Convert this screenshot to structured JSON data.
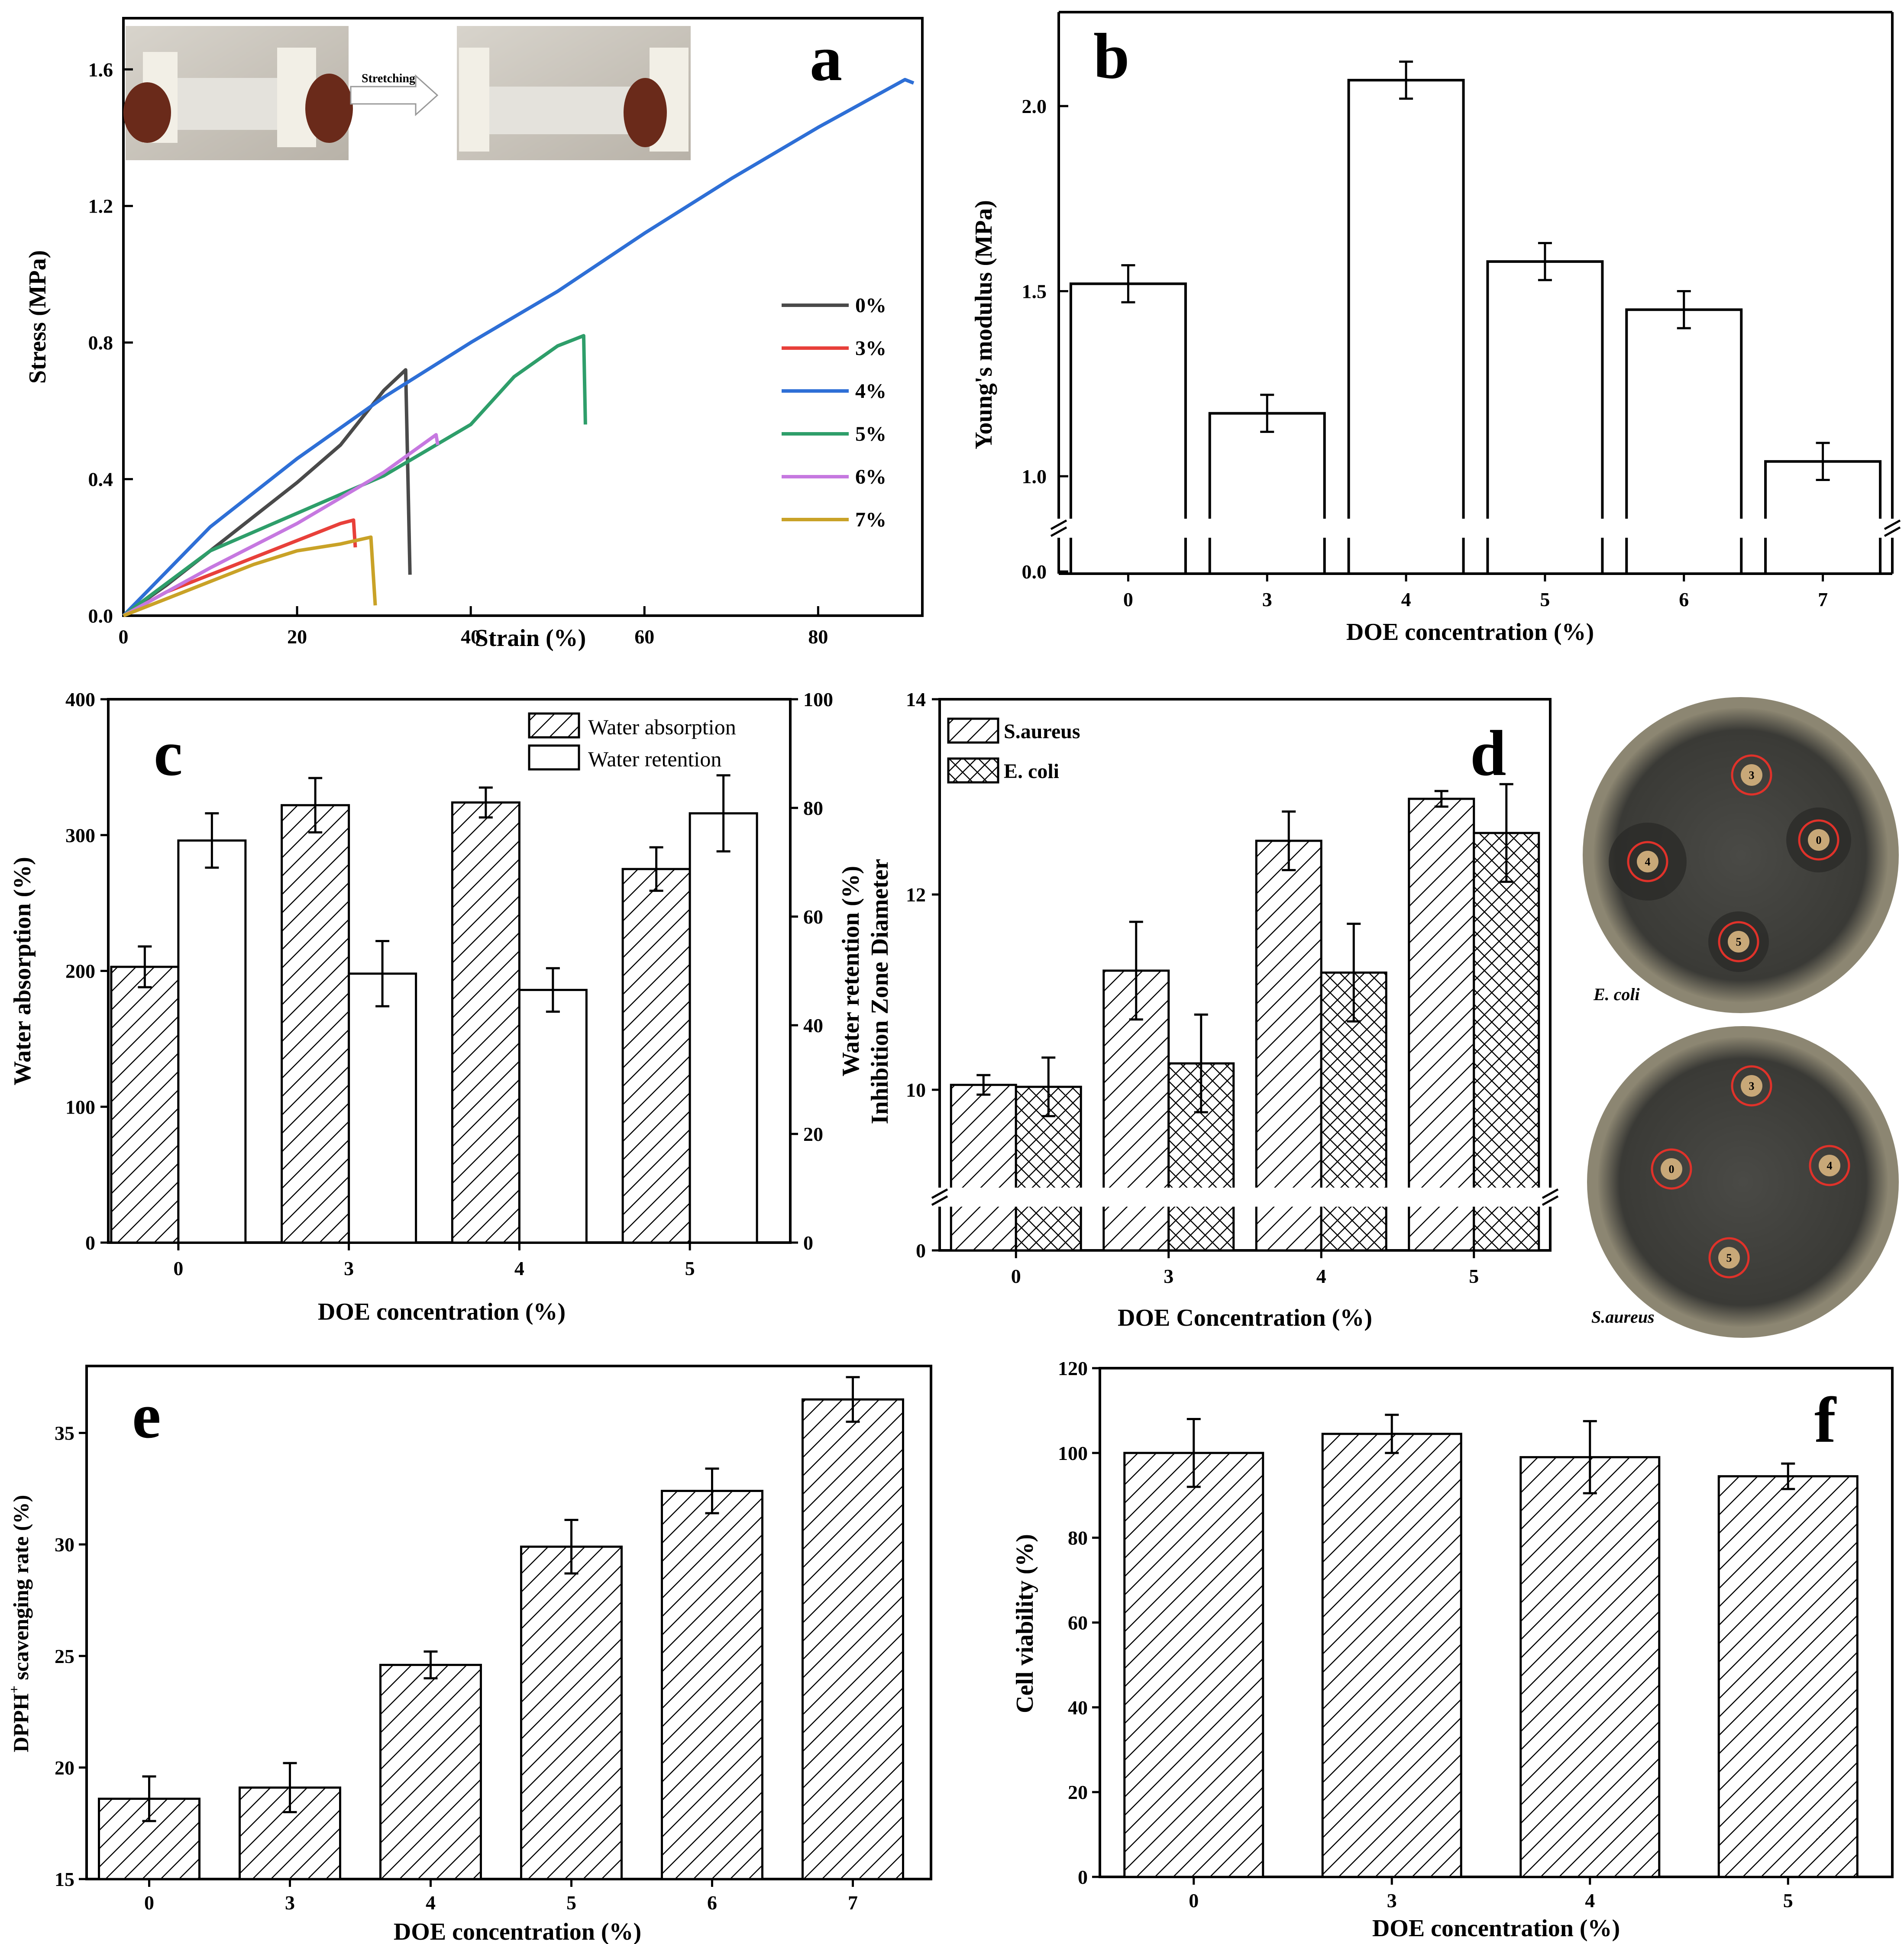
{
  "chart_data": [
    {
      "panel": "a",
      "type": "line",
      "xlabel": "Strain (%)",
      "ylabel": "Stress (MPa)",
      "xlim": [
        0,
        92
      ],
      "ylim": [
        0,
        1.75
      ],
      "xticks": [
        0,
        20,
        40,
        60,
        80
      ],
      "yticks": [
        "0.0",
        "0.4",
        "0.8",
        "1.2",
        "1.6"
      ],
      "legend_position": "right",
      "inset_label": "Stretching",
      "series": [
        {
          "name": "0%",
          "color": "#4a4a4a",
          "points": [
            [
              0,
              0
            ],
            [
              5,
              0.09
            ],
            [
              10,
              0.19
            ],
            [
              15,
              0.29
            ],
            [
              20,
              0.39
            ],
            [
              25,
              0.5
            ],
            [
              30,
              0.66
            ],
            [
              32.5,
              0.72
            ],
            [
              33,
              0.12
            ]
          ]
        },
        {
          "name": "3%",
          "color": "#e8403a",
          "points": [
            [
              0,
              0
            ],
            [
              5,
              0.07
            ],
            [
              10,
              0.12
            ],
            [
              15,
              0.17
            ],
            [
              20,
              0.22
            ],
            [
              25,
              0.27
            ],
            [
              26.5,
              0.28
            ],
            [
              26.7,
              0.2
            ]
          ]
        },
        {
          "name": "4%",
          "color": "#2e6fd6",
          "points": [
            [
              0,
              0
            ],
            [
              10,
              0.26
            ],
            [
              20,
              0.46
            ],
            [
              30,
              0.64
            ],
            [
              40,
              0.8
            ],
            [
              50,
              0.95
            ],
            [
              60,
              1.12
            ],
            [
              70,
              1.28
            ],
            [
              80,
              1.43
            ],
            [
              90,
              1.57
            ],
            [
              91,
              1.56
            ]
          ]
        },
        {
          "name": "5%",
          "color": "#2e9e6a",
          "points": [
            [
              0,
              0
            ],
            [
              10,
              0.19
            ],
            [
              20,
              0.3
            ],
            [
              30,
              0.41
            ],
            [
              40,
              0.56
            ],
            [
              45,
              0.7
            ],
            [
              50,
              0.79
            ],
            [
              53,
              0.82
            ],
            [
              53.2,
              0.56
            ]
          ]
        },
        {
          "name": "6%",
          "color": "#c678e0",
          "points": [
            [
              0,
              0
            ],
            [
              10,
              0.14
            ],
            [
              20,
              0.27
            ],
            [
              30,
              0.42
            ],
            [
              36,
              0.53
            ],
            [
              36.2,
              0.5
            ]
          ]
        },
        {
          "name": "7%",
          "color": "#c9a227",
          "points": [
            [
              0,
              0
            ],
            [
              5,
              0.05
            ],
            [
              10,
              0.1
            ],
            [
              15,
              0.15
            ],
            [
              20,
              0.19
            ],
            [
              25,
              0.21
            ],
            [
              28.5,
              0.23
            ],
            [
              29,
              0.03
            ]
          ]
        }
      ]
    },
    {
      "panel": "b",
      "type": "bar",
      "xlabel": "DOE concentration (%)",
      "ylabel": "Young's modulus (MPa)",
      "categories": [
        "0",
        "3",
        "4",
        "5",
        "6",
        "7"
      ],
      "values": [
        1.52,
        1.17,
        2.07,
        1.58,
        1.45,
        1.04
      ],
      "errors": [
        0.05,
        0.05,
        0.05,
        0.05,
        0.05,
        0.05
      ],
      "ylim": [
        0.75,
        2.25
      ],
      "yticks": [
        "0.0",
        "1.0",
        "1.5",
        "2.0"
      ],
      "axis_break": true
    },
    {
      "panel": "c",
      "type": "bar",
      "xlabel": "DOE concentration (%)",
      "ylabel": "Water absorption (%)",
      "ylabel_right": "Water retention (%)",
      "categories": [
        "0",
        "3",
        "4",
        "5"
      ],
      "ylim": [
        0,
        400
      ],
      "ylim_right": [
        0,
        100
      ],
      "yticks": [
        0,
        100,
        200,
        300,
        400
      ],
      "yticks_right": [
        0,
        20,
        40,
        60,
        80,
        100
      ],
      "legend_position": "top-right",
      "series": [
        {
          "name": "Water absorption",
          "pattern": "hatch",
          "axis": "left",
          "values": [
            203,
            322,
            324,
            275
          ],
          "errors": [
            15,
            20,
            11,
            16
          ]
        },
        {
          "name": "Water retention",
          "pattern": "open",
          "axis": "right",
          "values": [
            74,
            49.5,
            46.5,
            79
          ],
          "errors": [
            5,
            6,
            4,
            7
          ]
        }
      ]
    },
    {
      "panel": "d",
      "type": "bar",
      "xlabel": "DOE Concentration (%)",
      "ylabel": "Inhibition Zone Diameter",
      "categories": [
        "0",
        "3",
        "4",
        "5"
      ],
      "ylim": [
        8.4,
        14
      ],
      "yticks": [
        "0",
        "10",
        "12",
        "14"
      ],
      "axis_break": true,
      "legend_position": "top-left",
      "series": [
        {
          "name": "S.aureus",
          "pattern": "hatch",
          "values": [
            10.05,
            11.22,
            12.55,
            12.98
          ],
          "errors": [
            0.1,
            0.5,
            0.3,
            0.08
          ]
        },
        {
          "name": "E. coli",
          "pattern": "cross",
          "values": [
            10.03,
            10.27,
            11.2,
            12.63
          ],
          "errors": [
            0.3,
            0.5,
            0.5,
            0.5
          ]
        }
      ],
      "photos": [
        {
          "caption": "E. coli",
          "discs": [
            "3",
            "0",
            "4",
            "5"
          ]
        },
        {
          "caption": "S.aureus",
          "discs": [
            "3",
            "0",
            "4",
            "5"
          ]
        }
      ]
    },
    {
      "panel": "e",
      "type": "bar",
      "xlabel": "DOE concentration (%)",
      "ylabel": "DPPH",
      "ylabel_sup": "+",
      "ylabel_rest": " scavenging rate (%)",
      "categories": [
        "0",
        "3",
        "4",
        "5",
        "6",
        "7"
      ],
      "values": [
        18.6,
        19.1,
        24.6,
        29.9,
        32.4,
        36.5
      ],
      "errors": [
        1.0,
        1.1,
        0.6,
        1.2,
        1.0,
        1.0
      ],
      "ylim": [
        15,
        38
      ],
      "yticks": [
        15,
        20,
        25,
        30,
        35
      ]
    },
    {
      "panel": "f",
      "type": "bar",
      "xlabel": "DOE concentration (%)",
      "ylabel": "Cell viability (%)",
      "categories": [
        "0",
        "3",
        "4",
        "5"
      ],
      "values": [
        100,
        104.5,
        99,
        94.5
      ],
      "errors": [
        8,
        4.5,
        8.5,
        3
      ],
      "ylim": [
        0,
        120
      ],
      "yticks": [
        0,
        20,
        40,
        60,
        80,
        100,
        120
      ]
    }
  ]
}
